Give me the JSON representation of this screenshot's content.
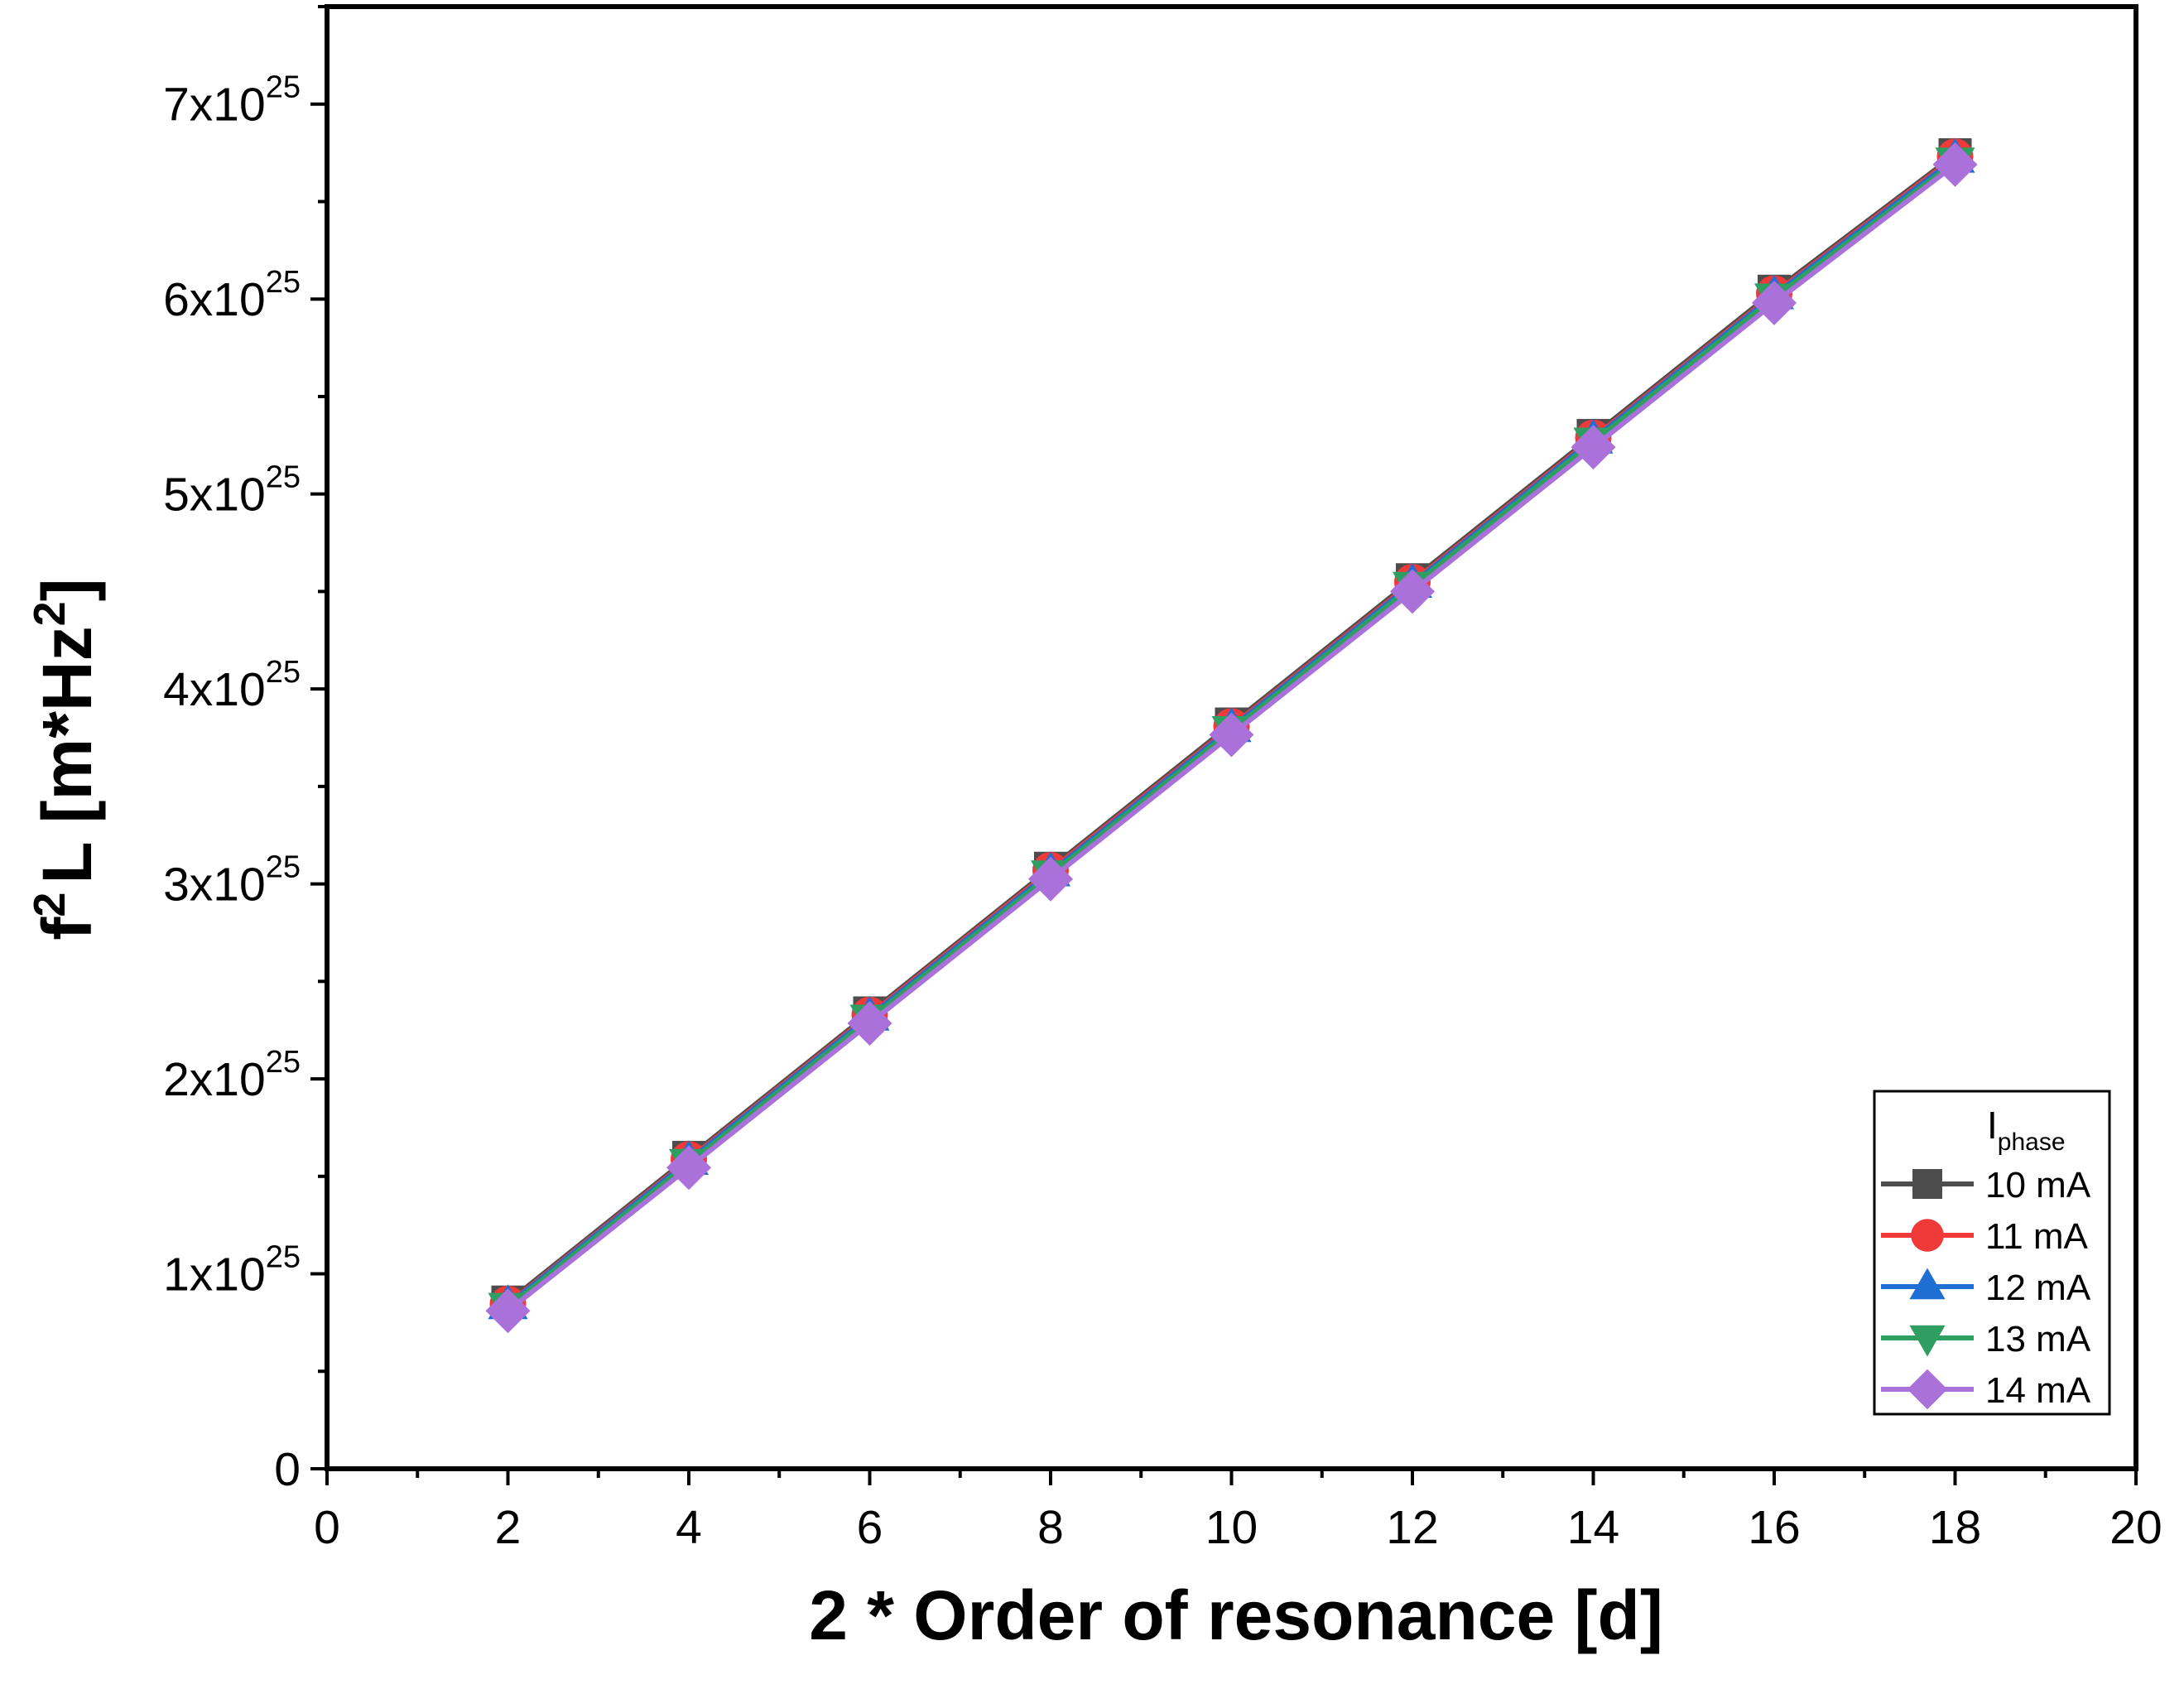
{
  "chart_data": {
    "type": "line",
    "xlabel": "2 * Order of resonance [d]",
    "ylabel": {
      "base": "f",
      "base_sup": "2",
      "rest": "L [m*Hz",
      "rest_sup": "2",
      "close": "]"
    },
    "xlim": [
      0,
      20
    ],
    "ylim": [
      0,
      7.5e+25
    ],
    "x_ticks": [
      0,
      2,
      4,
      6,
      8,
      10,
      12,
      14,
      16,
      18,
      20
    ],
    "x_tick_labels": [
      "0",
      "2",
      "4",
      "6",
      "8",
      "10",
      "12",
      "14",
      "16",
      "18",
      "20"
    ],
    "y_ticks": [
      0,
      1e+25,
      2e+25,
      3e+25,
      4e+25,
      5e+25,
      6e+25,
      7e+25
    ],
    "y_tick_labels": [
      {
        "mant": "0",
        "exp": ""
      },
      {
        "mant": "1x10",
        "exp": "25"
      },
      {
        "mant": "2x10",
        "exp": "25"
      },
      {
        "mant": "3x10",
        "exp": "25"
      },
      {
        "mant": "4x10",
        "exp": "25"
      },
      {
        "mant": "5x10",
        "exp": "25"
      },
      {
        "mant": "6x10",
        "exp": "25"
      },
      {
        "mant": "7x10",
        "exp": "25"
      }
    ],
    "grid": false,
    "legend": {
      "placement": "bottom-right",
      "title_base": "I",
      "title_sub": "phase"
    },
    "x": [
      2,
      4,
      6,
      8,
      10,
      12,
      14,
      16,
      18
    ],
    "series": [
      {
        "name": "10 mA",
        "color": "#4d4d4d",
        "marker": "square",
        "values": [
          8.55e+24,
          1.597e+25,
          2.338e+25,
          3.08e+25,
          3.82e+25,
          4.56e+25,
          5.3e+25,
          6.04e+25,
          6.74e+25
        ]
      },
      {
        "name": "11 mA",
        "color": "#f03a3a",
        "marker": "circle",
        "values": [
          8.45e+24,
          1.587e+25,
          2.328e+25,
          3.07e+25,
          3.808e+25,
          4.548e+25,
          5.288e+25,
          6.028e+25,
          6.73e+25
        ]
      },
      {
        "name": "12 mA",
        "color": "#1f6ed4",
        "marker": "triangle-up",
        "values": [
          8.4e+24,
          1.58e+25,
          2.32e+25,
          3.06e+25,
          3.8e+25,
          4.54e+25,
          5.28e+25,
          6.02e+25,
          6.72e+25
        ]
      },
      {
        "name": "13 mA",
        "color": "#2e9e63",
        "marker": "triangle-down",
        "values": [
          8.3e+24,
          1.568e+25,
          2.308e+25,
          3.048e+25,
          3.788e+25,
          4.528e+25,
          5.268e+25,
          6.008e+25,
          6.705e+25
        ]
      },
      {
        "name": "14 mA",
        "color": "#a971d9",
        "marker": "diamond",
        "values": [
          8.1e+24,
          1.545e+25,
          2.285e+25,
          3.025e+25,
          3.765e+25,
          4.5e+25,
          5.24e+25,
          5.98e+25,
          6.69e+25
        ]
      }
    ]
  }
}
